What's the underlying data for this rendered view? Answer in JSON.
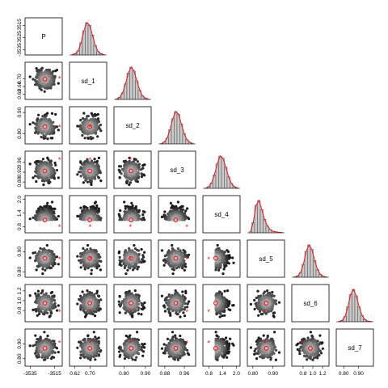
{
  "chart_data": {
    "type": "scatter",
    "title": "",
    "grid": false,
    "variables": [
      "P",
      "sd_1",
      "sd_2",
      "sd_3",
      "sd_4",
      "sd_5",
      "sd_6",
      "sd_7"
    ],
    "ranges": {
      "P": [
        -3538,
        -3510
      ],
      "sd_1": [
        0.6,
        0.78
      ],
      "sd_2": [
        0.76,
        0.92
      ],
      "sd_3": [
        0.86,
        1.0
      ],
      "sd_4": [
        0.6,
        2.1
      ],
      "sd_5": [
        0.78,
        0.95
      ],
      "sd_6": [
        0.6,
        1.3
      ],
      "sd_7": [
        0.76,
        0.99
      ]
    },
    "ticks": {
      "P": [
        "-3535",
        "-3525",
        "-3515"
      ],
      "sd_1": [
        "0.62",
        "0.66",
        "0.70"
      ],
      "sd_2": [
        "0.80",
        "0.90"
      ],
      "sd_3": [
        "0.88",
        "0.92",
        "0.96"
      ],
      "sd_4": [
        "0.8",
        "1.4",
        "2.0"
      ],
      "sd_5": [
        "0.80",
        "0.90"
      ],
      "sd_6": [
        "0.8",
        "1.0",
        "1.2"
      ],
      "sd_7": [
        "0.80",
        "0.90"
      ]
    },
    "bottom_ticks": {
      "P": [
        "-3535",
        "-3515"
      ],
      "sd_1": [
        "0.62",
        "0.70"
      ],
      "sd_2": [
        "0.80",
        "0.90"
      ],
      "sd_3": [
        "0.88",
        "0.96"
      ],
      "sd_4": [
        "0.8",
        "1.4",
        "2.0"
      ],
      "sd_5": [
        "0.80",
        "0.90"
      ],
      "sd_6": [
        "0.8",
        "1.0",
        "1.2"
      ],
      "sd_7": [
        "0.80",
        "0.90"
      ]
    },
    "histogram_density": {
      "P": [
        0.01,
        0.04,
        0.13,
        0.38,
        0.75,
        1.0,
        0.92,
        0.62,
        0.3,
        0.11,
        0.04,
        0.01
      ],
      "sd_1": [
        0.02,
        0.07,
        0.21,
        0.48,
        0.82,
        1.0,
        0.88,
        0.58,
        0.29,
        0.11,
        0.04,
        0.01
      ],
      "sd_2": [
        0.01,
        0.06,
        0.18,
        0.44,
        0.78,
        1.0,
        0.92,
        0.62,
        0.32,
        0.13,
        0.05,
        0.01
      ],
      "sd_3": [
        0.01,
        0.05,
        0.17,
        0.42,
        0.76,
        1.0,
        0.93,
        0.66,
        0.36,
        0.15,
        0.05,
        0.02
      ],
      "sd_4": [
        0.03,
        0.32,
        0.85,
        1.0,
        0.72,
        0.42,
        0.21,
        0.1,
        0.05,
        0.03,
        0.02,
        0.01
      ],
      "sd_5": [
        0.01,
        0.04,
        0.15,
        0.4,
        0.8,
        1.0,
        0.86,
        0.52,
        0.24,
        0.09,
        0.03,
        0.01
      ],
      "sd_6": [
        0.01,
        0.04,
        0.16,
        0.46,
        0.84,
        1.0,
        0.8,
        0.46,
        0.2,
        0.07,
        0.02,
        0.01
      ],
      "sd_7": [
        0.01,
        0.06,
        0.2,
        0.46,
        0.8,
        1.0,
        0.86,
        0.56,
        0.27,
        0.1,
        0.03,
        0.01
      ]
    },
    "estimates": {
      "mean_circle": {
        "P": -3523,
        "sd_1": 0.699,
        "sd_2": 0.833,
        "sd_3": 0.925,
        "sd_4": 1.1,
        "sd_5": 0.867,
        "sd_6": 0.95,
        "sd_7": 0.87
      },
      "true_star": {
        "P": -3511,
        "sd_1": 0.7,
        "sd_2": 0.83,
        "sd_3": 0.97,
        "sd_4": 0.79,
        "sd_5": 0.86,
        "sd_6": 0.77,
        "sd_7": 0.905
      }
    },
    "colors": {
      "point_dark": "#1a1a1a",
      "point_light": "#d0d0d0",
      "bar": "#c9c9c9",
      "density": "#e8141c",
      "marker": "#ff0000"
    }
  }
}
